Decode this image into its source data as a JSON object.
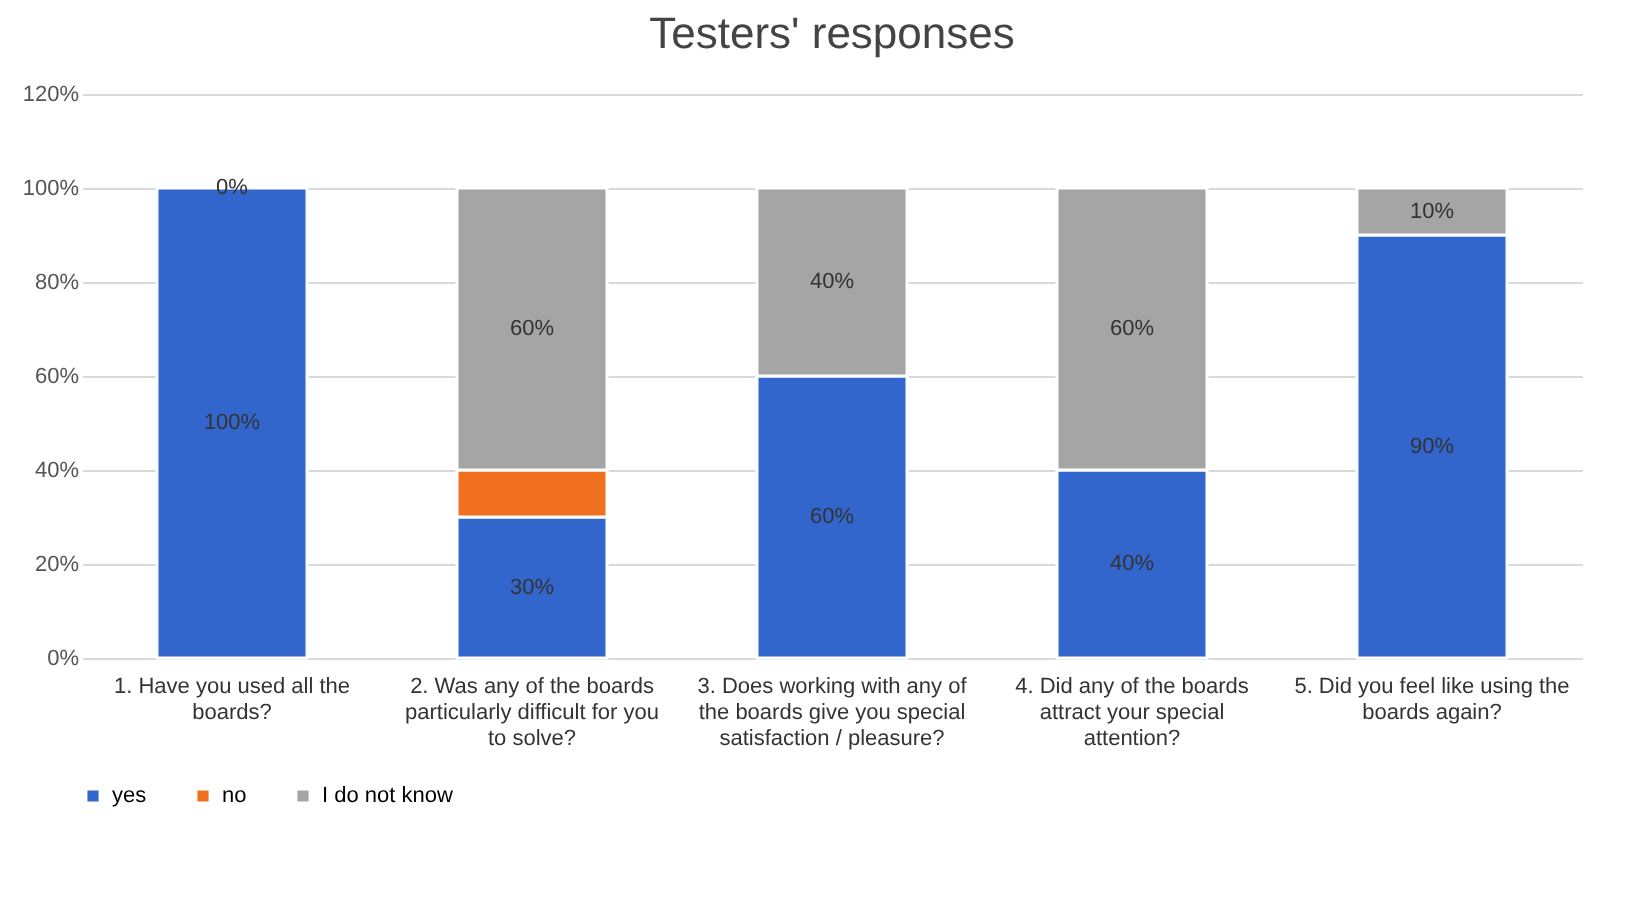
{
  "chart_data": {
    "type": "bar",
    "title": "Testers' responses",
    "stacked": true,
    "categories": [
      "1. Have you used all the boards?",
      "2. Was any of the boards particularly difficult for you to solve?",
      "3. Does working with any of the boards give you special satisfaction / pleasure?",
      "4. Did any of the boards attract your special attention?",
      "5. Did you feel like using the boards again?"
    ],
    "series": [
      {
        "name": "yes",
        "color": "#3366cc",
        "values": [
          100,
          30,
          60,
          40,
          90
        ],
        "value_labels": [
          "100%",
          "30%",
          "60%",
          "40%",
          "90%"
        ]
      },
      {
        "name": "no",
        "color": "#f07020",
        "values": [
          0,
          10,
          0,
          0,
          0
        ],
        "value_labels": [
          null,
          null,
          null,
          null,
          null
        ]
      },
      {
        "name": "I do not know",
        "color": "#a5a5a5",
        "values": [
          0,
          60,
          40,
          60,
          10
        ],
        "value_labels": [
          "0%",
          "60%",
          "40%",
          "60%",
          "10%"
        ]
      }
    ],
    "ylim": [
      0,
      120
    ],
    "yticks": [
      {
        "value": 0,
        "label": "0%"
      },
      {
        "value": 20,
        "label": "20%"
      },
      {
        "value": 40,
        "label": "40%"
      },
      {
        "value": 60,
        "label": "60%"
      },
      {
        "value": 80,
        "label": "80%"
      },
      {
        "value": 100,
        "label": "100%"
      },
      {
        "value": 120,
        "label": "120%"
      }
    ],
    "grid": "y",
    "legend": "bottom"
  }
}
